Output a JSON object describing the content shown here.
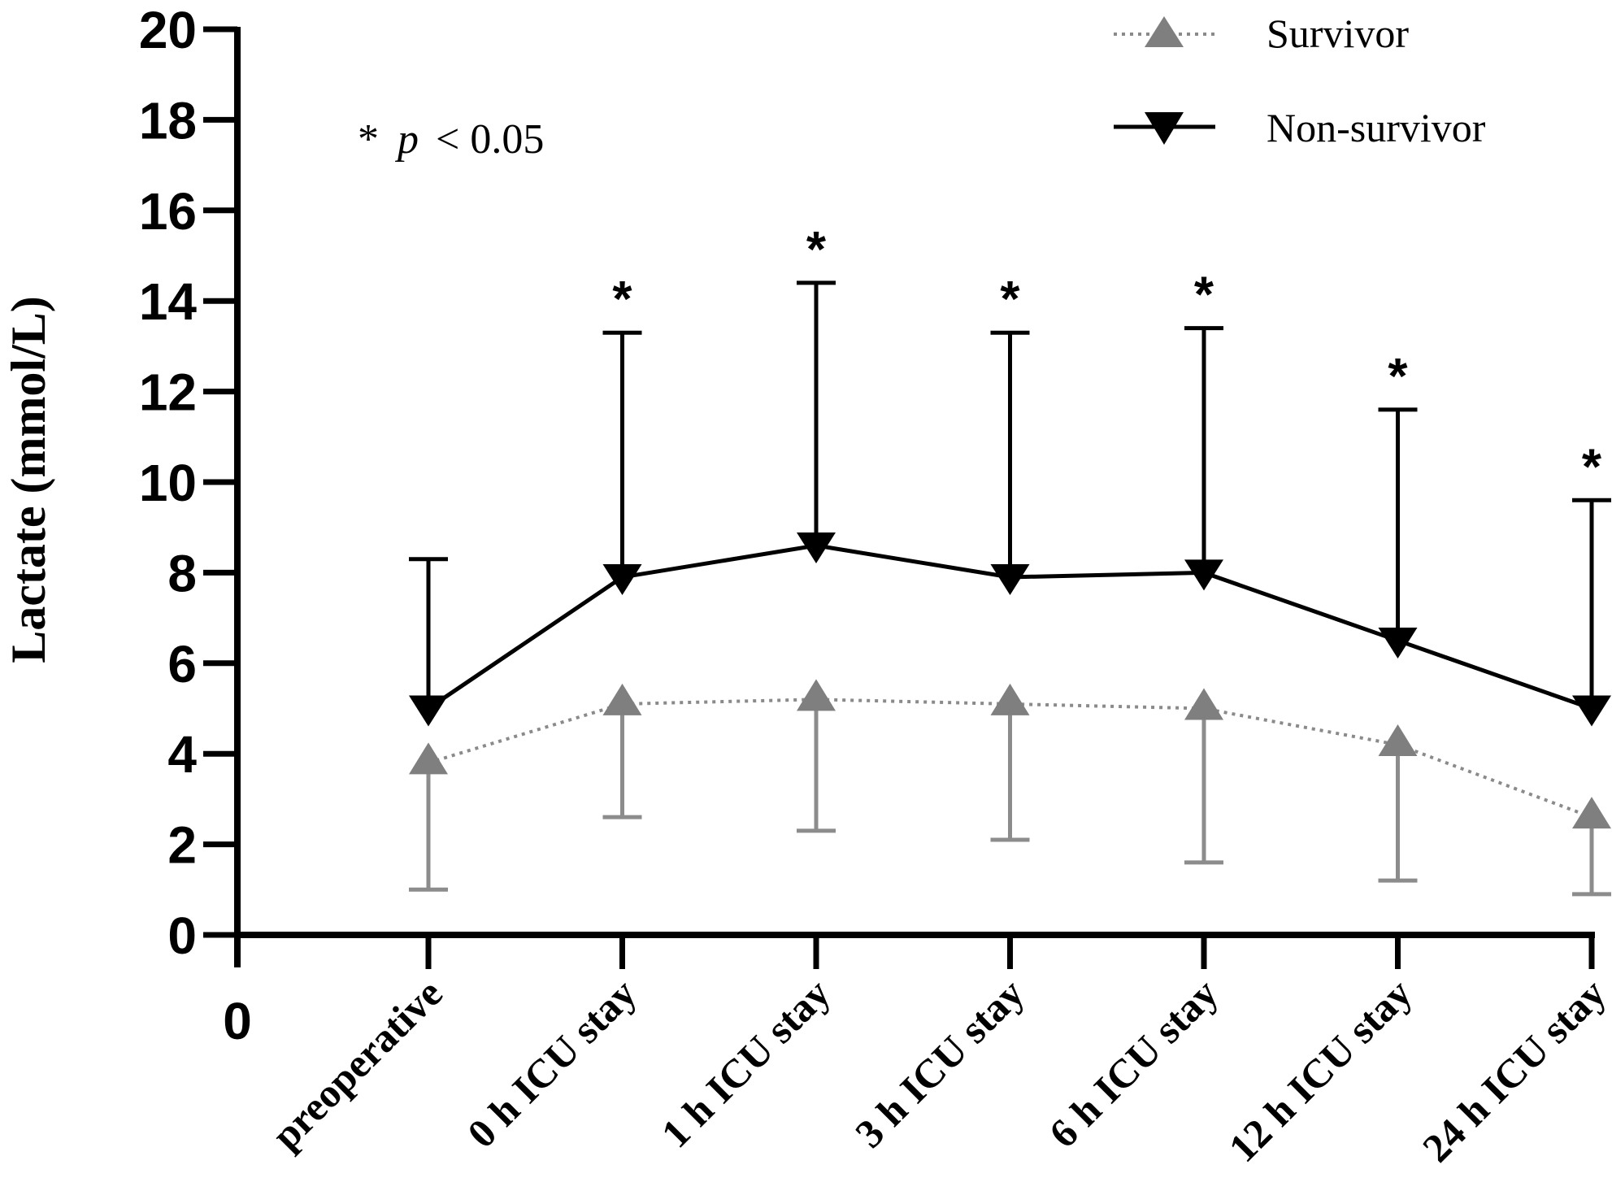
{
  "chart_data": {
    "type": "line",
    "title": "",
    "xlabel": "",
    "ylabel": "Lactate (mmol/L)",
    "ylim": [
      0,
      20
    ],
    "yticks": [
      "0",
      "2",
      "4",
      "6",
      "8",
      "10",
      "12",
      "14",
      "16",
      "18",
      "20"
    ],
    "x_origin_label": "0",
    "categories": [
      "preoperative",
      "0 h ICU stay",
      "1 h ICU stay",
      "3 h ICU stay",
      "6 h ICU stay",
      "12 h ICU stay",
      "24 h ICU stay"
    ],
    "series": [
      {
        "name": "Survivor",
        "marker": "triangle-up",
        "line_style": "dotted",
        "color": "#808080",
        "values": [
          3.8,
          5.1,
          5.2,
          5.1,
          5.0,
          4.2,
          2.6
        ],
        "error_lower": [
          1.0,
          2.6,
          2.3,
          2.1,
          1.6,
          1.2,
          0.9
        ]
      },
      {
        "name": "Non-survivor",
        "marker": "triangle-down",
        "line_style": "solid",
        "color": "#000000",
        "values": [
          5.0,
          7.9,
          8.6,
          7.9,
          8.0,
          6.5,
          5.0
        ],
        "error_upper": [
          8.3,
          13.3,
          14.4,
          13.3,
          13.4,
          11.6,
          9.6
        ]
      }
    ],
    "significance": [
      "",
      "*",
      "*",
      "*",
      "*",
      "*",
      "*"
    ],
    "annotation": {
      "star": "*",
      "p": "p",
      "rest": "< 0.05"
    },
    "legend_position": "top-right"
  }
}
